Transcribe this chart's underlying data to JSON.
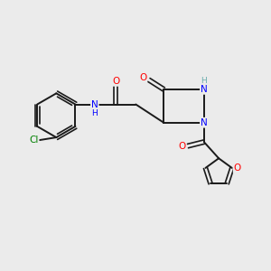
{
  "background_color": "#ebebeb",
  "bond_color": "#1a1a1a",
  "atom_colors": {
    "N": "#0000ff",
    "O": "#ff0000",
    "Cl": "#008000",
    "H": "#6aadad",
    "C": "#1a1a1a"
  },
  "figsize": [
    3.0,
    3.0
  ],
  "dpi": 100,
  "xlim": [
    0,
    10
  ],
  "ylim": [
    0,
    10
  ]
}
